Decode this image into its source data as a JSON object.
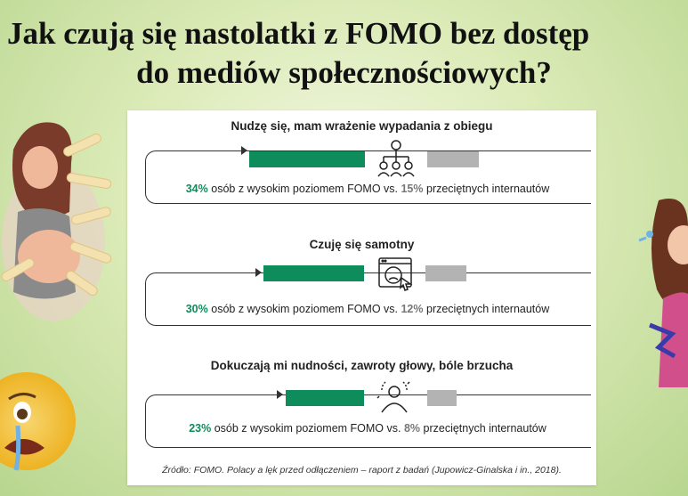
{
  "title": {
    "line1": "Jak czują się nastolatki z FOMO bez dostęp",
    "line2": "do mediów społecznościowych?"
  },
  "stats": [
    {
      "heading": "Nudzę się, mam wrażenie wypadania z obiegu",
      "fomo_pct": "34%",
      "text_mid": " osób z wysokim poziomem FOMO vs. ",
      "avg_pct": "15%",
      "text_end": " przeciętnych internautów",
      "icon": "people-network-icon"
    },
    {
      "heading": "Czuję się samotny",
      "fomo_pct": "30%",
      "text_mid": " osób z wysokim poziomem FOMO vs. ",
      "avg_pct": "12%",
      "text_end": " przeciętnych internautów",
      "icon": "sad-browser-icon"
    },
    {
      "heading": "Dokuczają mi nudności, zawroty głowy, bóle brzucha",
      "fomo_pct": "23%",
      "text_mid": " osób z wysokim poziomem FOMO vs. ",
      "avg_pct": "8%",
      "text_end": " przeciętnych internautów",
      "icon": "dizzy-person-icon"
    }
  ],
  "source": "Źródło: FOMO. Polacy a lęk przed odłączeniem – raport z badań (Jupowicz-Ginalska i in., 2018).",
  "colors": {
    "fomo_green": "#0f8c5c",
    "average_gray": "#b3b3b3"
  }
}
